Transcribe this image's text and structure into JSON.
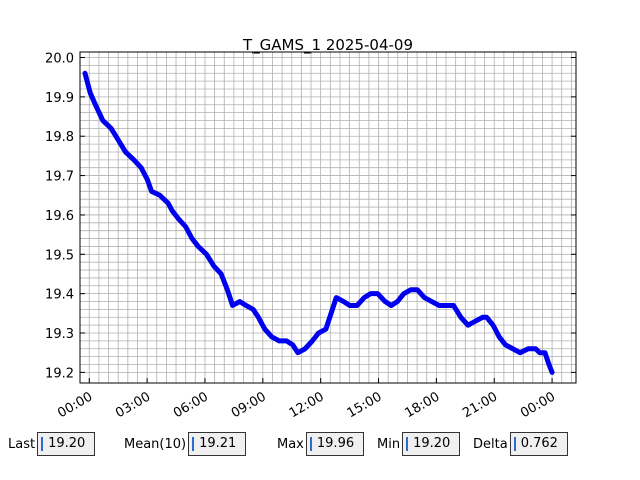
{
  "chart_data": {
    "type": "line",
    "title": "T_GAMS_1 2025-04-09",
    "x": [
      -0.22,
      0.05,
      0.32,
      0.7,
      1.13,
      1.51,
      1.88,
      2.31,
      2.69,
      3.01,
      3.23,
      3.66,
      4.09,
      4.31,
      4.63,
      5.0,
      5.33,
      5.65,
      6.08,
      6.46,
      6.84,
      7.16,
      7.43,
      7.8,
      8.13,
      8.5,
      8.77,
      9.1,
      9.47,
      9.85,
      10.23,
      10.55,
      10.82,
      11.19,
      11.57,
      11.89,
      12.27,
      12.54,
      12.81,
      13.19,
      13.51,
      13.89,
      14.26,
      14.59,
      14.96,
      15.34,
      15.66,
      15.98,
      16.31,
      16.68,
      17.01,
      17.38,
      17.76,
      18.14,
      18.51,
      18.89,
      19.27,
      19.64,
      20.02,
      20.4,
      20.61,
      20.94,
      21.26,
      21.58,
      21.96,
      22.34,
      22.77,
      23.14,
      23.36,
      23.63,
      23.84,
      24.0
    ],
    "series": [
      {
        "color": "#0000ee",
        "values": [
          19.96,
          19.91,
          19.88,
          19.84,
          19.82,
          19.79,
          19.76,
          19.74,
          19.72,
          19.69,
          19.66,
          19.65,
          19.63,
          19.61,
          19.59,
          19.57,
          19.54,
          19.52,
          19.5,
          19.47,
          19.45,
          19.41,
          19.37,
          19.38,
          19.37,
          19.36,
          19.34,
          19.31,
          19.29,
          19.28,
          19.28,
          19.27,
          19.25,
          19.26,
          19.28,
          19.3,
          19.31,
          19.35,
          19.39,
          19.38,
          19.37,
          19.37,
          19.39,
          19.4,
          19.4,
          19.38,
          19.37,
          19.38,
          19.4,
          19.41,
          19.41,
          19.39,
          19.38,
          19.37,
          19.37,
          19.37,
          19.34,
          19.32,
          19.33,
          19.34,
          19.34,
          19.32,
          19.29,
          19.27,
          19.26,
          19.25,
          19.26,
          19.26,
          19.25,
          19.25,
          19.22,
          19.2
        ]
      }
    ],
    "xlim": [
      -0.48,
      25.24
    ],
    "xticks": [
      {
        "value": 0,
        "label": "00:00"
      },
      {
        "value": 3,
        "label": "03:00"
      },
      {
        "value": 6,
        "label": "06:00"
      },
      {
        "value": 9,
        "label": "09:00"
      },
      {
        "value": 12,
        "label": "12:00"
      },
      {
        "value": 15,
        "label": "15:00"
      },
      {
        "value": 18,
        "label": "18:00"
      },
      {
        "value": 21,
        "label": "21:00"
      },
      {
        "value": 24,
        "label": "00:00"
      }
    ],
    "ylim": [
      19.173,
      20.014
    ],
    "yticks": [
      19.2,
      19.3,
      19.4,
      19.5,
      19.6,
      19.7,
      19.8,
      19.9,
      {
        "value": 20,
        "label": "20.0"
      }
    ],
    "grid": true
  },
  "stats": [
    {
      "label": "Last",
      "value": "19.20"
    },
    {
      "label": "Mean(10)",
      "value": "19.21"
    },
    {
      "label": "Max",
      "value": "19.96"
    },
    {
      "label": "Min",
      "value": "19.20"
    },
    {
      "label": "Delta",
      "value": "0.762"
    }
  ]
}
